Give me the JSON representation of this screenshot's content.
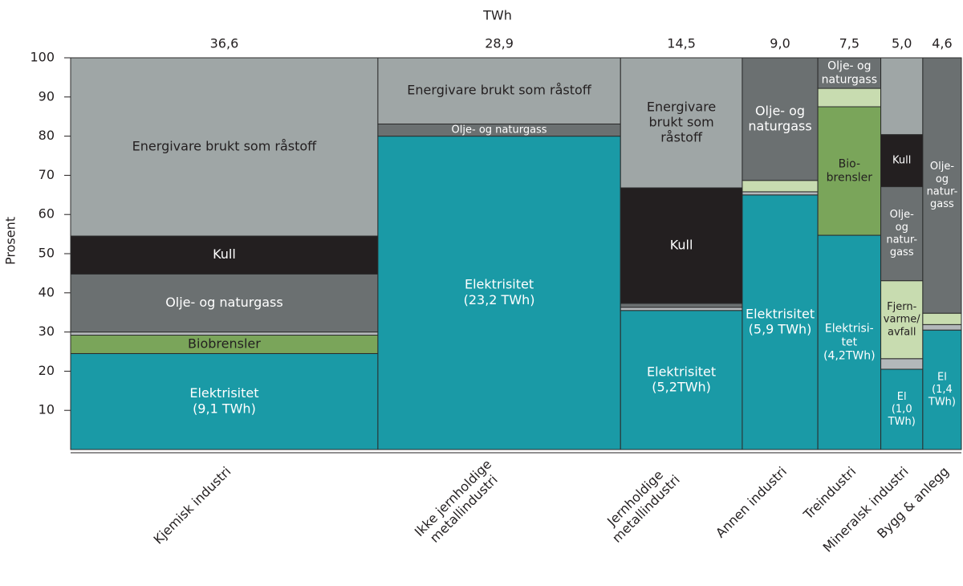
{
  "chart_data": {
    "type": "marimekko",
    "title": "TWh",
    "y_label": "Prosent",
    "ylim": [
      0,
      100
    ],
    "yticks": [
      10,
      20,
      30,
      40,
      50,
      60,
      70,
      80,
      90,
      100
    ],
    "columns": [
      {
        "category": [
          "Kjemisk industri"
        ],
        "width": {
          "value": 36.6,
          "label": "36,6"
        },
        "segments": [
          {
            "color": "#1a9aa6",
            "value": 24.5,
            "label": [
              "Elektrisitet",
              "(9,1 TWh)"
            ]
          },
          {
            "color": "#7aa55a",
            "value": 4.7,
            "label": [
              "Biobrensler"
            ]
          },
          {
            "color": "#b3b8ba",
            "value": 0.8
          },
          {
            "color": "#6b7071",
            "value": 14.8,
            "label": [
              "Olje- og naturgass"
            ]
          },
          {
            "color": "#231f20",
            "value": 9.7,
            "label": [
              "Kull"
            ]
          },
          {
            "color": "#9fa6a6",
            "value": 45.5,
            "label": [
              "Energivare brukt som råstoff"
            ]
          }
        ]
      },
      {
        "category": [
          "Ikke jernholdige",
          "metallindustri"
        ],
        "width": {
          "value": 28.9,
          "label": "28,9"
        },
        "segments": [
          {
            "color": "#1a9aa6",
            "value": 80.0,
            "label": [
              "Elektrisitet",
              "(23,2 TWh)"
            ]
          },
          {
            "color": "#6b7071",
            "value": 3.1,
            "label": [
              "Olje- og naturgass"
            ]
          },
          {
            "color": "#9fa6a6",
            "value": 16.9,
            "label": [
              "Energivare brukt som råstoff"
            ]
          }
        ]
      },
      {
        "category": [
          "Jernholdige",
          "metallindustri"
        ],
        "width": {
          "value": 14.5,
          "label": "14,5"
        },
        "segments": [
          {
            "color": "#1a9aa6",
            "value": 35.5,
            "label": [
              "Elektrisitet",
              "(5,2TWh)"
            ]
          },
          {
            "color": "#b3b8ba",
            "value": 0.8
          },
          {
            "color": "#6b7071",
            "value": 1.0
          },
          {
            "color": "#231f20",
            "value": 29.5,
            "label": [
              "Kull"
            ]
          },
          {
            "color": "#9fa6a6",
            "value": 33.2,
            "label": [
              "Energivare",
              "brukt som",
              "råstoff"
            ]
          }
        ]
      },
      {
        "category": [
          "Annen industri"
        ],
        "width": {
          "value": 9.0,
          "label": "9,0"
        },
        "segments": [
          {
            "color": "#1a9aa6",
            "value": 65.0,
            "label": [
              "Elektrisitet",
              "(5,9 TWh)"
            ]
          },
          {
            "color": "#b3b8ba",
            "value": 0.8
          },
          {
            "color": "#c8dcb0",
            "value": 2.9
          },
          {
            "color": "#6b7071",
            "value": 31.3,
            "label": [
              "Olje- og",
              "naturgass"
            ]
          }
        ]
      },
      {
        "category": [
          "Treindustri"
        ],
        "width": {
          "value": 7.5,
          "label": "7,5"
        },
        "segments": [
          {
            "color": "#1a9aa6",
            "value": 54.7,
            "label": [
              "Elektrisi-",
              "tet",
              "(4,2TWh)"
            ]
          },
          {
            "color": "#7aa55a",
            "value": 32.8,
            "label": [
              "Bio-",
              "brensler"
            ]
          },
          {
            "color": "#c8dcb0",
            "value": 4.7
          },
          {
            "color": "#6b7071",
            "value": 7.8,
            "label": [
              "Olje- og",
              "naturgass"
            ]
          }
        ]
      },
      {
        "category": [
          "Mineralsk industri"
        ],
        "width": {
          "value": 5.0,
          "label": "5,0"
        },
        "segments": [
          {
            "color": "#1a9aa6",
            "value": 20.5,
            "label": [
              "El",
              "(1,0",
              "TWh)"
            ]
          },
          {
            "color": "#b3b8ba",
            "value": 2.7
          },
          {
            "color": "#c8dcb0",
            "value": 19.9,
            "label": [
              "Fjern-",
              "varme/",
              "avfall"
            ]
          },
          {
            "color": "#6b7071",
            "value": 24.0,
            "label": [
              "Olje-",
              "og",
              "natur-",
              "gass"
            ]
          },
          {
            "color": "#231f20",
            "value": 13.3,
            "label": [
              "Kull"
            ]
          },
          {
            "color": "#9fa6a6",
            "value": 19.6
          }
        ]
      },
      {
        "category": [
          "Bygg & anlegg"
        ],
        "width": {
          "value": 4.6,
          "label": "4,6"
        },
        "segments": [
          {
            "color": "#1a9aa6",
            "value": 30.5,
            "label": [
              "El",
              "(1,4",
              "TWh)"
            ]
          },
          {
            "color": "#b3b8ba",
            "value": 1.4
          },
          {
            "color": "#c8dcb0",
            "value": 2.9
          },
          {
            "color": "#6b7071",
            "value": 65.2,
            "label": [
              "Olje-",
              "og",
              "natur-",
              "gass"
            ]
          }
        ]
      }
    ]
  }
}
